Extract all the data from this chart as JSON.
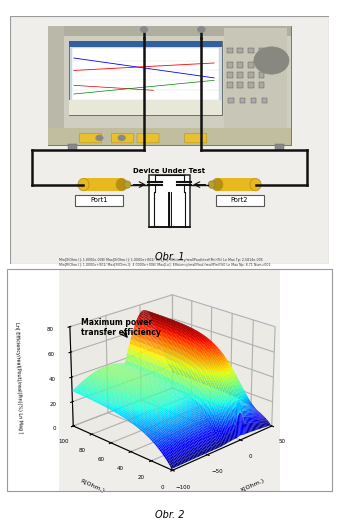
{
  "fig_width": 3.39,
  "fig_height": 5.28,
  "dpi": 100,
  "bg_color": "#ffffff",
  "obr1_label": "Obr. 1",
  "obr2_label": "Obr. 2",
  "annotation_text": "Maximum power\ntransfer efficiency",
  "ylabel_3d": "Ln[ Efficiency/real(Pout)/real(Pin)(%) Ln Mag ]",
  "xlabel_3d": "X(Ohm.)",
  "rlabel_3d": "R(Ohm.)",
  "header_text": "Min[X(Ohm.)]: 1.0000e-008/ Max[X(Ohm.)]: 1.0000e+002/ Min[Jm]: Efficiency/real(Pout)/real(Pin)(%) Ln Max Tp: 2.5814e-005\nMin[R(Ohm.)]: 1.0000e+001/ Max[R(Ohm.)]: 4.0000e+006/ Max[Ln]: Efficiency/real(Pout)/real(Pin)(%0 Ln Max Np: 8.71 Num=001",
  "port1_label": "Port1",
  "port2_label": "Port2",
  "dut_label": "Device Under Test",
  "panel1_bg": "#f0eeeb",
  "panel2_bg": "#f0eeeb",
  "vna_body_color": "#d0cec0",
  "vna_screen_color": "#c8dce8",
  "port_color": "#e8b820",
  "port_dark": "#b89010",
  "wire_color": "#111111"
}
